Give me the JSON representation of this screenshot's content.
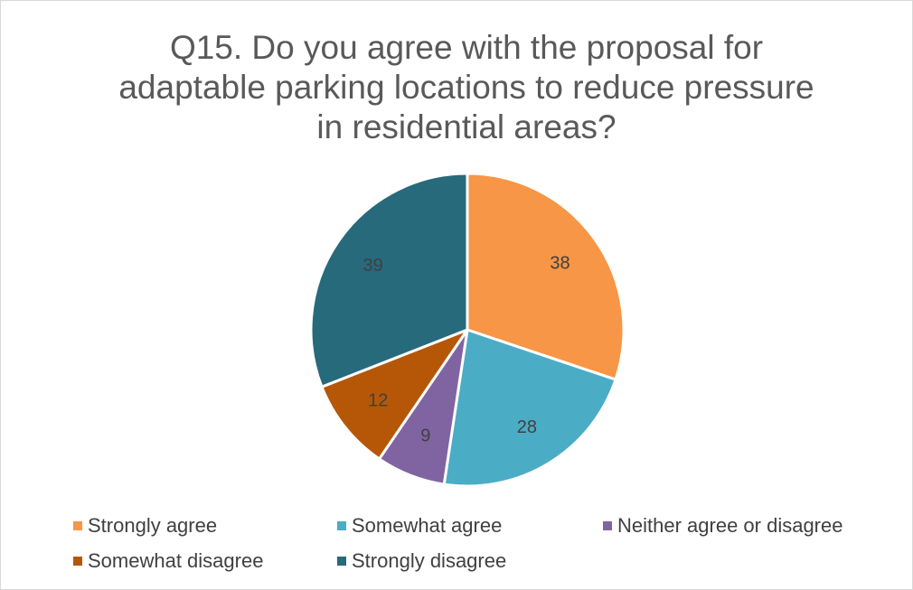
{
  "chart_data": {
    "type": "pie",
    "title_lines": [
      "Q15. Do you agree with the proposal for",
      "adaptable parking locations to reduce pressure",
      "in residential areas?"
    ],
    "categories": [
      "Strongly agree",
      "Somewhat agree",
      "Neither agree or disagree",
      "Somewhat disagree",
      "Strongly disagree"
    ],
    "values": [
      38,
      28,
      9,
      12,
      39
    ],
    "colors": [
      "#f79646",
      "#4bacc6",
      "#8064a2",
      "#b65708",
      "#276a7c"
    ],
    "data_labels": true,
    "legend_position": "bottom"
  }
}
